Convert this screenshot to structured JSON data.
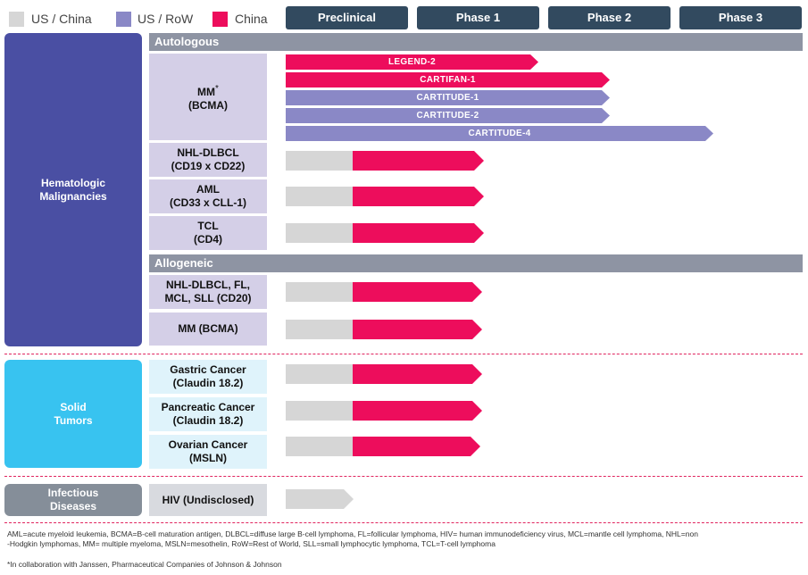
{
  "legend": [
    {
      "label": "US / China",
      "color": "#d6d6d6"
    },
    {
      "label": "US / RoW",
      "color": "#8a88c6"
    },
    {
      "label": "China",
      "color": "#ed0d5c"
    }
  ],
  "phases": [
    "Preclinical",
    "Phase 1",
    "Phase 2",
    "Phase 3"
  ],
  "categories": {
    "heme": {
      "line1": "Hematologic",
      "line2": "Malignancies",
      "color": "#4a4fa3"
    },
    "solid": {
      "line1": "Solid",
      "line2": "Tumors",
      "color": "#38c3f0"
    },
    "infectious": {
      "line1": "Infectious",
      "line2": "Diseases",
      "color": "#858e99"
    }
  },
  "sections": {
    "autologous": "Autologous",
    "allogeneic": "Allogeneic"
  },
  "mm_bcma": {
    "line1": "MM",
    "asterisk": "*",
    "line2": "(BCMA)"
  },
  "studies": [
    "LEGEND-2",
    "CARTIFAN-1",
    "CARTITUDE-1",
    "CARTITUDE-2",
    "CARTITUDE-4"
  ],
  "programs": {
    "nhl_dlbcl": {
      "line1": "NHL-DLBCL",
      "line2": "(CD19 x CD22)"
    },
    "aml": {
      "line1": "AML",
      "line2": "(CD33 x CLL-1)"
    },
    "tcl": {
      "line1": "TCL",
      "line2": "(CD4)"
    },
    "allo_nhl": {
      "line1": "NHL-DLBCL, FL,",
      "line2": "MCL, SLL (CD20)"
    },
    "allo_mm": {
      "line1": "MM (BCMA)"
    },
    "gastric": {
      "line1": "Gastric Cancer",
      "line2": "(Claudin 18.2)"
    },
    "pancreatic": {
      "line1": "Pancreatic Cancer",
      "line2": "(Claudin 18.2)"
    },
    "ovarian": {
      "line1": "Ovarian Cancer",
      "line2": "(MSLN)"
    },
    "hiv": {
      "line1": "HIV (Undisclosed)"
    }
  },
  "footnotes": {
    "abbreviations_1": "AML=acute myeloid leukemia, BCMA=B-cell maturation antigen, DLBCL=diffuse large B-cell lymphoma, FL=follicular lymphoma, HIV= human immunodeficiency virus, MCL=mantle cell lymphoma, NHL=non",
    "abbreviations_2": "-Hodgkin lymphomas, MM= multiple myeloma, MSLN=mesothelin, RoW=Rest of World, SLL=small lymphocytic lymphoma, TCL=T-cell lymphoma",
    "collaboration": "*In collaboration with Janssen, Pharmaceutical Companies of Johnson & Johnson"
  }
}
